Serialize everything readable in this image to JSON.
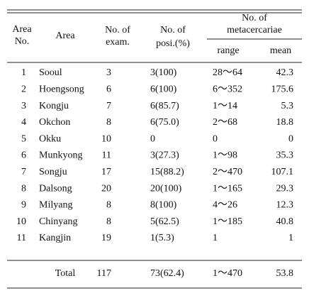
{
  "table": {
    "header": {
      "area_no": [
        "Area",
        "No."
      ],
      "area": "Area",
      "exam": [
        "No. of",
        "exam."
      ],
      "posi": [
        "No. of",
        "posi.(%)"
      ],
      "meta": [
        "No. of",
        "metacercariae"
      ],
      "range": "range",
      "mean": "mean"
    },
    "rows": [
      [
        "1",
        "Sooul",
        "3",
        "3(100)",
        "28～64",
        "42.3"
      ],
      [
        "2",
        "Hoengsong",
        "6",
        "6(100)",
        "6～352",
        "175.6"
      ],
      [
        "3",
        "Kongju",
        "7",
        "6(85.7)",
        "1～14",
        "5.3"
      ],
      [
        "4",
        "Okchon",
        "8",
        "6(75.0)",
        "2～68",
        "18.8"
      ],
      [
        "5",
        "Okku",
        "10",
        "0",
        "0",
        "0"
      ],
      [
        "6",
        "Munkyong",
        "11",
        "3(27.3)",
        "1～98",
        "35.3"
      ],
      [
        "7",
        "Songju",
        "17",
        "15(88.2)",
        "2～470",
        "107.1"
      ],
      [
        "8",
        "Dalsong",
        "20",
        "20(100)",
        "1～165",
        "29.3"
      ],
      [
        "9",
        "Milyang",
        "8",
        "8(100)",
        "4～26",
        "12.3"
      ],
      [
        "10",
        "Chinyang",
        "8",
        "5(62.5)",
        "1～185",
        "40.8"
      ],
      [
        "11",
        "Kangjin",
        "19",
        "1(5.3)",
        "1",
        "1"
      ]
    ],
    "total": [
      "Total",
      "117",
      "73(62.4)",
      "1～470",
      "53.8"
    ]
  }
}
